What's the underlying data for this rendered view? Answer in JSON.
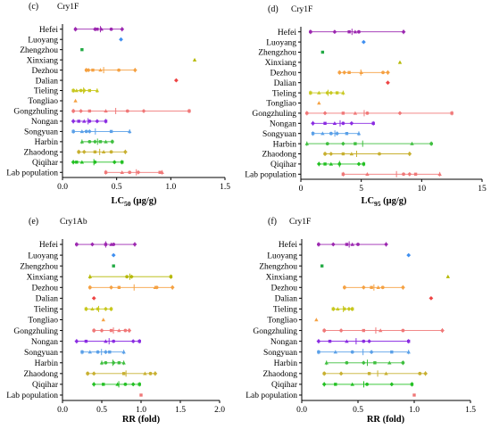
{
  "chart_data": [
    {
      "panel": "(c)",
      "subtitle": "Cry1F",
      "type": "scatter",
      "xlabel": "LC50 (μg/g)",
      "xlabel_main": "LC",
      "xlabel_sub": "50",
      "xlabel_unit": " (μg/g)",
      "xlim": [
        0.0,
        1.5
      ],
      "xticks": [
        "0.0",
        "0.5",
        "1.0",
        "1.5"
      ],
      "grid": false,
      "categories": [
        "Hefei",
        "Luoyang",
        "Zhengzhou",
        "Xinxiang",
        "Dezhou",
        "Dalian",
        "Tieling",
        "Tongliao",
        "Gongzhuling",
        "Nongan",
        "Songyuan",
        "Harbin",
        "Zhaodong",
        "Qiqihar",
        "Lab population"
      ],
      "colors": [
        "#9c27b0",
        "#3f8ff0",
        "#22aa44",
        "#b5b800",
        "#f5a142",
        "#ee4444",
        "#c8c820",
        "#f5a142",
        "#f07878",
        "#8a2be2",
        "#5aa0e8",
        "#3fbf3f",
        "#c8b030",
        "#22c022",
        "#f07878"
      ],
      "points": [
        [
          0.12,
          0.3,
          0.32,
          0.36,
          0.45,
          0.55
        ],
        [
          0.54
        ],
        [
          0.18
        ],
        [
          1.22
        ],
        [
          0.22,
          0.24,
          0.28,
          0.35,
          0.52,
          0.67
        ],
        [
          1.05
        ],
        [
          0.1,
          0.13,
          0.17,
          0.2,
          0.25,
          0.32
        ],
        [
          0.12
        ],
        [
          0.1,
          0.17,
          0.25,
          0.4,
          0.6,
          0.75,
          1.17
        ],
        [
          0.1,
          0.15,
          0.2,
          0.25,
          0.32,
          0.4
        ],
        [
          0.1,
          0.18,
          0.22,
          0.25,
          0.45,
          0.62
        ],
        [
          0.18,
          0.25,
          0.3,
          0.35,
          0.4,
          0.46
        ],
        [
          0.15,
          0.2,
          0.3,
          0.38,
          0.45,
          0.58
        ],
        [
          0.1,
          0.13,
          0.18,
          0.3,
          0.48,
          0.55
        ],
        [
          0.4,
          0.55,
          0.62,
          0.7,
          0.9,
          0.92
        ]
      ]
    },
    {
      "panel": "(d)",
      "subtitle": "Cry1F",
      "type": "scatter",
      "xlabel": "LC95 (μg/g)",
      "xlabel_main": "LC",
      "xlabel_sub": "95",
      "xlabel_unit": " (μg/g)",
      "xlim": [
        0,
        15
      ],
      "xticks": [
        "0",
        "5",
        "10",
        "15"
      ],
      "grid": false,
      "categories": [
        "Hefei",
        "Luoyang",
        "Zhengzhou",
        "Xinxiang",
        "Dezhou",
        "Dalian",
        "Tieling",
        "Tongliao",
        "Gongzhuling",
        "Nongan",
        "Songyuan",
        "Harbin",
        "Zhaodong",
        "Qiqihar",
        "Lab population"
      ],
      "colors": [
        "#9c27b0",
        "#3f8ff0",
        "#22aa44",
        "#b5b800",
        "#f5a142",
        "#ee4444",
        "#c8c820",
        "#f5a142",
        "#f07878",
        "#8a2be2",
        "#5aa0e8",
        "#3fbf3f",
        "#c8b030",
        "#22c022",
        "#f07878"
      ],
      "points": [
        [
          0.8,
          2.8,
          4.0,
          4.5,
          4.8,
          8.5
        ],
        [
          5.2
        ],
        [
          1.8
        ],
        [
          8.2
        ],
        [
          3.2,
          3.6,
          4.0,
          5.0,
          6.8,
          7.2
        ],
        [
          7.2
        ],
        [
          0.8,
          1.5,
          2.2,
          2.5,
          3.0,
          3.5
        ],
        [
          1.5
        ],
        [
          0.5,
          2.0,
          3.5,
          4.5,
          5.5,
          8.2,
          12.5
        ],
        [
          1.0,
          2.0,
          2.8,
          3.5,
          4.2,
          6.0
        ],
        [
          1.0,
          1.8,
          2.5,
          3.0,
          3.8,
          4.8
        ],
        [
          0.5,
          2.2,
          3.5,
          4.5,
          9.2,
          10.8
        ],
        [
          2.0,
          2.5,
          3.5,
          4.2,
          6.5,
          9.0
        ],
        [
          1.5,
          2.0,
          2.5,
          3.2,
          4.8,
          5.2
        ],
        [
          3.5,
          5.5,
          8.5,
          9.0,
          9.5,
          11.5
        ]
      ]
    },
    {
      "panel": "(e)",
      "subtitle": "Cry1Ab",
      "type": "scatter",
      "xlabel": "RR (fold)",
      "xlabel_main": "RR (fold)",
      "xlabel_sub": "",
      "xlabel_unit": "",
      "xlim": [
        0.0,
        2.0
      ],
      "xticks": [
        "0.0",
        "0.5",
        "1.0",
        "1.5",
        "2.0"
      ],
      "grid": false,
      "categories": [
        "Hefei",
        "Luoyang",
        "Zhengzhou",
        "Xinxiang",
        "Dezhou",
        "Dalian",
        "Tieling",
        "Tongliao",
        "Gongzhuling",
        "Nongan",
        "Songyuan",
        "Harbin",
        "Zhaodong",
        "Qiqihar",
        "Lab population"
      ],
      "colors": [
        "#9c27b0",
        "#3f8ff0",
        "#22aa44",
        "#b5b800",
        "#f5a142",
        "#ee4444",
        "#c8c820",
        "#f5a142",
        "#f07878",
        "#8a2be2",
        "#5aa0e8",
        "#3fbf3f",
        "#c8b030",
        "#22c022",
        "#f07878"
      ],
      "points": [
        [
          0.18,
          0.38,
          0.55,
          0.62,
          0.65,
          0.92
        ],
        [
          0.65
        ],
        [
          0.65
        ],
        [
          0.35,
          0.82,
          0.88,
          1.38
        ],
        [
          0.35,
          0.62,
          0.72,
          1.18,
          1.2,
          1.4
        ],
        [
          0.4
        ],
        [
          0.3,
          0.38,
          0.45,
          0.55,
          0.62
        ],
        [
          0.52
        ],
        [
          0.4,
          0.5,
          0.62,
          0.72,
          0.8,
          0.85
        ],
        [
          0.18,
          0.3,
          0.55,
          0.65,
          0.9,
          0.98
        ],
        [
          0.25,
          0.35,
          0.45,
          0.55,
          0.6,
          0.78
        ],
        [
          0.5,
          0.55,
          0.65,
          0.72,
          0.78
        ],
        [
          0.32,
          0.4,
          0.78,
          1.05,
          1.12,
          1.18
        ],
        [
          0.4,
          0.52,
          0.7,
          0.8,
          0.9,
          0.98
        ],
        [
          1.0
        ]
      ]
    },
    {
      "panel": "(f)",
      "subtitle": "Cry1F",
      "type": "scatter",
      "xlabel": "RR (fold)",
      "xlabel_main": "RR (fold)",
      "xlabel_sub": "",
      "xlabel_unit": "",
      "xlim": [
        0.0,
        1.5
      ],
      "xticks": [
        "0.0",
        "0.5",
        "1.0",
        "1.5"
      ],
      "grid": false,
      "categories": [
        "Hefei",
        "Luoyang",
        "Zhengzhou",
        "Xinxiang",
        "Dezhou",
        "Dalian",
        "Tieling",
        "Tongliao",
        "Gongzhuling",
        "Nongan",
        "Songyuan",
        "Harbin",
        "Zhaodong",
        "Qiqihar",
        "Lab population"
      ],
      "colors": [
        "#9c27b0",
        "#3f8ff0",
        "#22aa44",
        "#b5b800",
        "#f5a142",
        "#ee4444",
        "#c8c820",
        "#f5a142",
        "#f07878",
        "#8a2be2",
        "#5aa0e8",
        "#3fbf3f",
        "#c8b030",
        "#22c022",
        "#f07878"
      ],
      "points": [
        [
          0.15,
          0.28,
          0.4,
          0.45,
          0.5,
          0.75
        ],
        [
          0.95
        ],
        [
          0.18
        ],
        [
          1.3
        ],
        [
          0.38,
          0.55,
          0.62,
          0.68,
          0.72,
          0.9
        ],
        [
          1.15
        ],
        [
          0.28,
          0.32,
          0.38,
          0.42,
          0.45
        ],
        [
          0.13
        ],
        [
          0.2,
          0.35,
          0.55,
          0.7,
          0.9,
          1.25
        ],
        [
          0.15,
          0.25,
          0.4,
          0.55,
          0.6,
          0.95
        ],
        [
          0.15,
          0.3,
          0.45,
          0.62,
          0.8,
          0.95
        ],
        [
          0.22,
          0.4,
          0.55,
          0.65,
          0.78,
          0.9
        ],
        [
          0.2,
          0.35,
          0.6,
          0.75,
          1.05,
          1.1
        ],
        [
          0.2,
          0.3,
          0.45,
          0.58,
          0.8,
          0.98
        ],
        [
          1.0
        ]
      ]
    }
  ]
}
